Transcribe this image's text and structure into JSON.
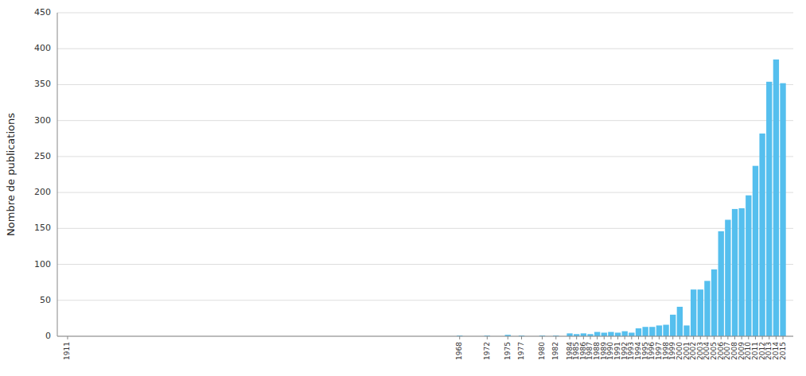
{
  "chart_data": {
    "type": "bar",
    "x": [
      1911,
      1968,
      1972,
      1975,
      1977,
      1980,
      1982,
      1984,
      1985,
      1986,
      1987,
      1988,
      1989,
      1990,
      1991,
      1992,
      1993,
      1994,
      1995,
      1996,
      1997,
      1998,
      1999,
      2000,
      2001,
      2002,
      2003,
      2004,
      2005,
      2006,
      2007,
      2008,
      2009,
      2010,
      2011,
      2012,
      2013,
      2014,
      2015
    ],
    "values": [
      0,
      1,
      1,
      2,
      1,
      1,
      1,
      4,
      3,
      4,
      3,
      6,
      5,
      6,
      5,
      7,
      5,
      11,
      13,
      13,
      15,
      16,
      30,
      41,
      15,
      65,
      65,
      77,
      93,
      146,
      162,
      177,
      178,
      196,
      237,
      282,
      354,
      385,
      352
    ],
    "color": "#55BFEE",
    "ylabel": "Nombre de publications",
    "xlim": [
      1909.5,
      2016.5
    ],
    "xticks": [
      1911,
      1968,
      1972,
      1975,
      1977,
      1980,
      1982,
      1984,
      1985,
      1986,
      1987,
      1988,
      1989,
      1990,
      1991,
      1992,
      1993,
      1994,
      1995,
      1996,
      1997,
      1998,
      1999,
      2000,
      2001,
      2002,
      2003,
      2004,
      2005,
      2006,
      2007,
      2008,
      2009,
      2010,
      2011,
      2012,
      2013,
      2014,
      2015
    ],
    "ylim": [
      0,
      450
    ],
    "yticks": [
      0,
      50,
      100,
      150,
      200,
      250,
      300,
      350,
      400,
      450
    ],
    "grid": true
  }
}
